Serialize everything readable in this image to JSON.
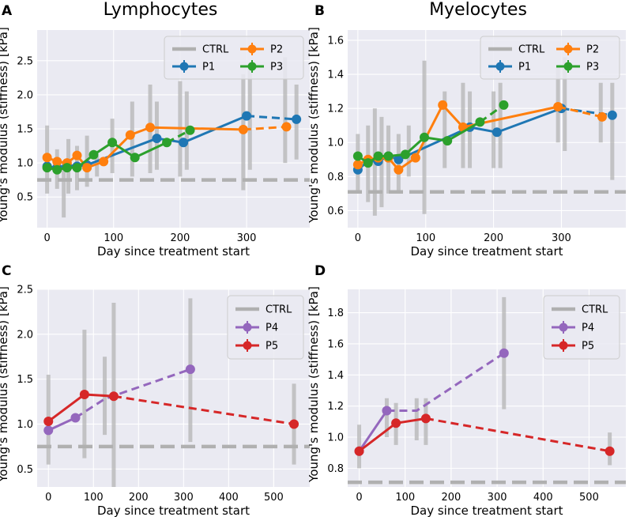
{
  "figure": {
    "titles": [
      "Lymphocytes",
      "Myelocytes"
    ]
  },
  "chart_data": [
    {
      "panel": "A",
      "type": "line",
      "title": "Lymphocytes",
      "xlabel": "Day since treatment start",
      "ylabel": "Young's modulus (stiffness) [kPa]",
      "xlim": [
        -15,
        395
      ],
      "ylim": [
        0.05,
        2.95
      ],
      "xticks": [
        0,
        100,
        200,
        300
      ],
      "yticks": [
        0.5,
        1.0,
        1.5,
        2.0,
        2.5
      ],
      "ytick_labels": [
        "0.5",
        "1.0",
        "1.5",
        "2.0",
        "2.5"
      ],
      "ctrl": 0.75,
      "legend": {
        "ncol": 2,
        "position": "top-right",
        "entries": [
          "CTRL",
          "P1",
          "P2",
          "P3"
        ]
      },
      "series": [
        {
          "name": "P1",
          "color": "#1f77b4",
          "x": [
            0,
            15,
            30,
            45,
            60,
            165,
            205,
            300
          ],
          "y": [
            0.95,
            0.93,
            0.97,
            0.95,
            0.97,
            1.36,
            1.3,
            1.69
          ],
          "dashed_x": [
            300,
            375
          ],
          "dashed_y": [
            1.69,
            1.64
          ]
        },
        {
          "name": "P2",
          "color": "#ff7f0e",
          "x": [
            0,
            15,
            30,
            45,
            60,
            85,
            125,
            155,
            295
          ],
          "y": [
            1.08,
            1.02,
            1.0,
            1.11,
            0.93,
            1.02,
            1.41,
            1.52,
            1.49
          ],
          "dashed_x": [
            295,
            360
          ],
          "dashed_y": [
            1.49,
            1.53
          ]
        },
        {
          "name": "P3",
          "color": "#2ca02c",
          "x": [
            0,
            15,
            30,
            45,
            70,
            98,
            132,
            180
          ],
          "y": [
            0.93,
            0.9,
            0.93,
            0.93,
            1.12,
            1.3,
            1.08,
            1.3
          ],
          "dashed_x": [
            180,
            215
          ],
          "dashed_y": [
            1.3,
            1.48
          ]
        }
      ],
      "errorbars": [
        {
          "x": 0,
          "lo": 0.55,
          "hi": 1.55
        },
        {
          "x": 15,
          "lo": 0.62,
          "hi": 1.2
        },
        {
          "x": 25,
          "lo": 0.2,
          "hi": 1.0
        },
        {
          "x": 32,
          "lo": 0.55,
          "hi": 1.35
        },
        {
          "x": 45,
          "lo": 0.6,
          "hi": 1.25
        },
        {
          "x": 60,
          "lo": 0.65,
          "hi": 1.4
        },
        {
          "x": 75,
          "lo": 0.8,
          "hi": 1.1
        },
        {
          "x": 98,
          "lo": 0.85,
          "hi": 1.65
        },
        {
          "x": 128,
          "lo": 0.8,
          "hi": 1.9
        },
        {
          "x": 155,
          "lo": 0.85,
          "hi": 2.15
        },
        {
          "x": 165,
          "lo": 0.9,
          "hi": 1.9
        },
        {
          "x": 200,
          "lo": 0.8,
          "hi": 2.2
        },
        {
          "x": 210,
          "lo": 0.9,
          "hi": 2.05
        },
        {
          "x": 295,
          "lo": 0.6,
          "hi": 2.3
        },
        {
          "x": 305,
          "lo": 0.9,
          "hi": 2.4
        },
        {
          "x": 358,
          "lo": 1.0,
          "hi": 2.55
        },
        {
          "x": 375,
          "lo": 1.05,
          "hi": 2.15
        }
      ]
    },
    {
      "panel": "B",
      "type": "line",
      "title": "Myelocytes",
      "xlabel": "Day since treatment start",
      "ylabel": "Young's modulus (stiffness) [kPa]",
      "xlim": [
        -15,
        395
      ],
      "ylim": [
        0.5,
        1.66
      ],
      "xticks": [
        0,
        100,
        200,
        300
      ],
      "yticks": [
        0.6,
        0.8,
        1.0,
        1.2,
        1.4,
        1.6
      ],
      "ytick_labels": [
        "0.6",
        "0.8",
        "1.0",
        "1.2",
        "1.4",
        "1.6"
      ],
      "ctrl": 0.71,
      "legend": {
        "ncol": 2,
        "position": "top-right",
        "entries": [
          "CTRL",
          "P1",
          "P2",
          "P3"
        ]
      },
      "series": [
        {
          "name": "P1",
          "color": "#1f77b4",
          "x": [
            0,
            15,
            30,
            45,
            60,
            165,
            205,
            300
          ],
          "y": [
            0.84,
            0.89,
            0.89,
            0.92,
            0.9,
            1.09,
            1.06,
            1.2
          ],
          "dashed_x": [
            300,
            375
          ],
          "dashed_y": [
            1.2,
            1.16
          ]
        },
        {
          "name": "P2",
          "color": "#ff7f0e",
          "x": [
            0,
            15,
            30,
            45,
            60,
            85,
            125,
            155,
            295
          ],
          "y": [
            0.87,
            0.9,
            0.91,
            0.91,
            0.84,
            0.91,
            1.22,
            1.09,
            1.21
          ],
          "dashed_x": [
            295,
            360
          ],
          "dashed_y": [
            1.21,
            1.15
          ]
        },
        {
          "name": "P3",
          "color": "#2ca02c",
          "x": [
            0,
            15,
            30,
            45,
            70,
            98,
            132,
            180
          ],
          "y": [
            0.92,
            0.88,
            0.92,
            0.92,
            0.93,
            1.03,
            1.01,
            1.12
          ],
          "dashed_x": [
            180,
            215
          ],
          "dashed_y": [
            1.12,
            1.22
          ]
        }
      ],
      "errorbars": [
        {
          "x": 0,
          "lo": 0.7,
          "hi": 1.05
        },
        {
          "x": 15,
          "lo": 0.65,
          "hi": 1.1
        },
        {
          "x": 25,
          "lo": 0.57,
          "hi": 1.2
        },
        {
          "x": 35,
          "lo": 0.62,
          "hi": 1.15
        },
        {
          "x": 45,
          "lo": 0.7,
          "hi": 1.1
        },
        {
          "x": 60,
          "lo": 0.72,
          "hi": 1.05
        },
        {
          "x": 75,
          "lo": 0.8,
          "hi": 1.1
        },
        {
          "x": 98,
          "lo": 0.58,
          "hi": 1.48
        },
        {
          "x": 128,
          "lo": 0.85,
          "hi": 1.3
        },
        {
          "x": 155,
          "lo": 0.85,
          "hi": 1.35
        },
        {
          "x": 165,
          "lo": 0.85,
          "hi": 1.3
        },
        {
          "x": 200,
          "lo": 0.85,
          "hi": 1.3
        },
        {
          "x": 210,
          "lo": 0.85,
          "hi": 1.35
        },
        {
          "x": 295,
          "lo": 1.0,
          "hi": 1.45
        },
        {
          "x": 305,
          "lo": 0.95,
          "hi": 1.5
        },
        {
          "x": 358,
          "lo": 1.0,
          "hi": 1.35
        },
        {
          "x": 375,
          "lo": 0.78,
          "hi": 1.35
        }
      ]
    },
    {
      "panel": "C",
      "type": "line",
      "title": "",
      "xlabel": "Day since treatment start",
      "ylabel": "Young's modulus (stiffness) [kPa]",
      "xlim": [
        -25,
        580
      ],
      "ylim": [
        0.3,
        2.5
      ],
      "xticks": [
        0,
        100,
        200,
        300,
        400,
        500
      ],
      "yticks": [
        0.5,
        1.0,
        1.5,
        2.0,
        2.5
      ],
      "ytick_labels": [
        "0.5",
        "1.0",
        "1.5",
        "2.0",
        "2.5"
      ],
      "ctrl": 0.75,
      "legend": {
        "ncol": 1,
        "position": "top-right",
        "entries": [
          "CTRL",
          "P4",
          "P5"
        ]
      },
      "series": [
        {
          "name": "P4",
          "color": "#9467bd",
          "x": [
            0,
            60
          ],
          "y": [
            0.93,
            1.07
          ],
          "dashed_x": [
            60,
            125,
            315
          ],
          "dashed_y": [
            1.07,
            1.28,
            1.61
          ]
        },
        {
          "name": "P5",
          "color": "#d62728",
          "x": [
            0,
            80,
            145
          ],
          "y": [
            1.03,
            1.33,
            1.31
          ],
          "dashed_x": [
            145,
            545
          ],
          "dashed_y": [
            1.31,
            1.0
          ]
        }
      ],
      "errorbars": [
        {
          "x": 0,
          "lo": 0.55,
          "hi": 1.55
        },
        {
          "x": 80,
          "lo": 0.62,
          "hi": 2.05
        },
        {
          "x": 125,
          "lo": 0.88,
          "hi": 1.75
        },
        {
          "x": 145,
          "lo": 0.3,
          "hi": 2.35
        },
        {
          "x": 315,
          "lo": 0.8,
          "hi": 2.4
        },
        {
          "x": 545,
          "lo": 0.55,
          "hi": 1.45
        }
      ]
    },
    {
      "panel": "D",
      "type": "line",
      "title": "",
      "xlabel": "Day since treatment start",
      "ylabel": "Young's modulus (stiffness) [kPa]",
      "xlim": [
        -25,
        580
      ],
      "ylim": [
        0.68,
        1.95
      ],
      "xticks": [
        0,
        100,
        200,
        300,
        400,
        500
      ],
      "yticks": [
        0.8,
        1.0,
        1.2,
        1.4,
        1.6,
        1.8
      ],
      "ytick_labels": [
        "0.8",
        "1.0",
        "1.2",
        "1.4",
        "1.6",
        "1.8"
      ],
      "ctrl": 0.71,
      "legend": {
        "ncol": 1,
        "position": "top-right",
        "entries": [
          "CTRL",
          "P4",
          "P5"
        ]
      },
      "series": [
        {
          "name": "P4",
          "color": "#9467bd",
          "x": [
            0,
            60
          ],
          "y": [
            0.91,
            1.17
          ],
          "dashed_x": [
            60,
            125,
            315
          ],
          "dashed_y": [
            1.17,
            1.17,
            1.54
          ]
        },
        {
          "name": "P5",
          "color": "#d62728",
          "x": [
            0,
            80,
            145
          ],
          "y": [
            0.91,
            1.09,
            1.12
          ],
          "dashed_x": [
            145,
            545
          ],
          "dashed_y": [
            1.12,
            0.91
          ]
        }
      ],
      "errorbars": [
        {
          "x": 0,
          "lo": 0.8,
          "hi": 1.08
        },
        {
          "x": 60,
          "lo": 1.0,
          "hi": 1.25
        },
        {
          "x": 80,
          "lo": 0.95,
          "hi": 1.22
        },
        {
          "x": 125,
          "lo": 0.98,
          "hi": 1.25
        },
        {
          "x": 145,
          "lo": 0.95,
          "hi": 1.25
        },
        {
          "x": 315,
          "lo": 1.18,
          "hi": 1.9
        },
        {
          "x": 545,
          "lo": 0.82,
          "hi": 1.03
        }
      ]
    }
  ]
}
